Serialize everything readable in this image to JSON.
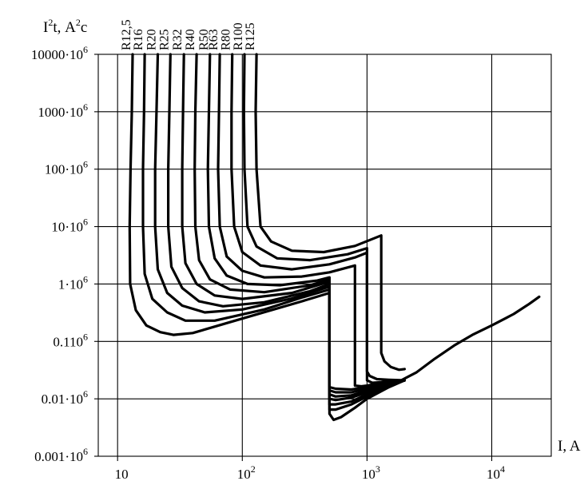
{
  "chart_data": {
    "type": "line",
    "title": "",
    "xlabel": "I, A",
    "ylabel": "I²t, А²с",
    "xscale": "log",
    "yscale": "log",
    "xlim": [
      7,
      30000
    ],
    "ylim": [
      1000.0,
      10000000000.0
    ],
    "grid": true,
    "x_ticks": [
      {
        "value": 10,
        "base": "10",
        "exp": ""
      },
      {
        "value": 100,
        "base": "10",
        "exp": "2"
      },
      {
        "value": 1000,
        "base": "10",
        "exp": "3"
      },
      {
        "value": 10000,
        "base": "10",
        "exp": "4"
      }
    ],
    "y_ticks": [
      {
        "value": 10000000000.0,
        "label": "10000·10",
        "exp": "6"
      },
      {
        "value": 1000000000.0,
        "label": "1000·10",
        "exp": "6"
      },
      {
        "value": 100000000.0,
        "label": "100·10",
        "exp": "6"
      },
      {
        "value": 10000000.0,
        "label": "10·10",
        "exp": "6"
      },
      {
        "value": 1000000.0,
        "label": "1·10",
        "exp": "6"
      },
      {
        "value": 100000.0,
        "label": "0.110",
        "exp": "6"
      },
      {
        "value": 10000.0,
        "label": "0.01·10",
        "exp": "6"
      },
      {
        "value": 1000.0,
        "label": "0.001·10",
        "exp": "6"
      }
    ],
    "series": [
      {
        "name": "R12,5",
        "points": [
          [
            13.2,
            10000000000.0
          ],
          [
            13,
            1000000000.0
          ],
          [
            12.7,
            100000000.0
          ],
          [
            12.5,
            10000000.0
          ],
          [
            12.6,
            1000000.0
          ],
          [
            14,
            350000.0
          ],
          [
            17,
            190000.0
          ],
          [
            22,
            145000.0
          ],
          [
            28,
            130000.0
          ],
          [
            40,
            140000.0
          ],
          [
            100,
            250000.0
          ],
          [
            300,
            500000.0
          ],
          [
            500,
            700000.0
          ],
          [
            500,
            5500.0
          ],
          [
            540,
            4300.0
          ],
          [
            620,
            4800.0
          ],
          [
            800,
            7000.0
          ],
          [
            1000,
            10000.0
          ],
          [
            1500,
            16000.0
          ],
          [
            2000,
            21000.0
          ]
        ]
      },
      {
        "name": "R16",
        "points": [
          [
            16.5,
            10000000000.0
          ],
          [
            16.3,
            1000000000.0
          ],
          [
            16,
            100000000.0
          ],
          [
            16,
            10000000.0
          ],
          [
            16.5,
            1500000.0
          ],
          [
            19,
            550000.0
          ],
          [
            25,
            320000.0
          ],
          [
            35,
            230000.0
          ],
          [
            60,
            230000.0
          ],
          [
            150,
            360000.0
          ],
          [
            300,
            580000.0
          ],
          [
            500,
            800000.0
          ],
          [
            500,
            6500.0
          ],
          [
            560,
            6500.0
          ],
          [
            750,
            8000.0
          ],
          [
            1000,
            11000.0
          ],
          [
            1500,
            17000.0
          ],
          [
            2000,
            21000.0
          ]
        ]
      },
      {
        "name": "R20",
        "points": [
          [
            21,
            10000000000.0
          ],
          [
            20.5,
            1000000000.0
          ],
          [
            20,
            100000000.0
          ],
          [
            20,
            10000000.0
          ],
          [
            21,
            1800000.0
          ],
          [
            25,
            700000.0
          ],
          [
            33,
            420000.0
          ],
          [
            50,
            320000.0
          ],
          [
            100,
            360000.0
          ],
          [
            250,
            560000.0
          ],
          [
            500,
            900000.0
          ],
          [
            500,
            8000.0
          ],
          [
            560,
            8000.0
          ],
          [
            750,
            9000.0
          ],
          [
            1000,
            12000.0
          ],
          [
            1500,
            18000.0
          ],
          [
            2000,
            21000.0
          ]
        ]
      },
      {
        "name": "R25",
        "points": [
          [
            26.5,
            10000000000.0
          ],
          [
            26,
            1000000000.0
          ],
          [
            25.5,
            100000000.0
          ],
          [
            25.5,
            10000000.0
          ],
          [
            27,
            2000000.0
          ],
          [
            33,
            850000.0
          ],
          [
            45,
            500000.0
          ],
          [
            70,
            410000.0
          ],
          [
            150,
            480000.0
          ],
          [
            350,
            750000.0
          ],
          [
            500,
            1000000.0
          ],
          [
            500,
            10000.0
          ],
          [
            560,
            9500.0
          ],
          [
            750,
            10500.0
          ],
          [
            1000,
            13000.0
          ],
          [
            1500,
            18500.0
          ],
          [
            2000,
            21000.0
          ]
        ]
      },
      {
        "name": "R32",
        "points": [
          [
            34,
            10000000000.0
          ],
          [
            33.5,
            1000000000.0
          ],
          [
            33,
            100000000.0
          ],
          [
            33,
            10000000.0
          ],
          [
            35,
            2300000.0
          ],
          [
            43,
            1000000.0
          ],
          [
            60,
            630000.0
          ],
          [
            100,
            550000.0
          ],
          [
            250,
            700000.0
          ],
          [
            500,
            1100000.0
          ],
          [
            500,
            12000.0
          ],
          [
            560,
            11000.0
          ],
          [
            750,
            11500.0
          ],
          [
            1000,
            14000.0
          ],
          [
            1500,
            19000.0
          ],
          [
            2000,
            21000.0
          ]
        ]
      },
      {
        "name": "R40",
        "points": [
          [
            43,
            10000000000.0
          ],
          [
            42,
            1000000000.0
          ],
          [
            41.5,
            100000000.0
          ],
          [
            42,
            10000000.0
          ],
          [
            45,
            2600000.0
          ],
          [
            55,
            1200000.0
          ],
          [
            80,
            800000.0
          ],
          [
            150,
            720000.0
          ],
          [
            350,
            950000.0
          ],
          [
            500,
            1200000.0
          ],
          [
            500,
            14000.0
          ],
          [
            560,
            13000.0
          ],
          [
            750,
            13000.0
          ],
          [
            1000,
            15000.0
          ],
          [
            1500,
            19500.0
          ],
          [
            2000,
            21000.0
          ]
        ]
      },
      {
        "name": "R50",
        "points": [
          [
            55,
            10000000000.0
          ],
          [
            54,
            1000000000.0
          ],
          [
            53,
            100000000.0
          ],
          [
            54,
            10000000.0
          ],
          [
            60,
            2800000.0
          ],
          [
            75,
            1400000.0
          ],
          [
            110,
            1000000.0
          ],
          [
            200,
            950000.0
          ],
          [
            400,
            1150000.0
          ],
          [
            500,
            1300000.0
          ],
          [
            500,
            16000.0
          ],
          [
            560,
            15000.0
          ],
          [
            750,
            14500.0
          ],
          [
            1000,
            16000.0
          ],
          [
            1500,
            20000.0
          ],
          [
            2000,
            21000.0
          ]
        ]
      },
      {
        "name": "R63",
        "points": [
          [
            66,
            10000000000.0
          ],
          [
            65,
            1000000000.0
          ],
          [
            64,
            100000000.0
          ],
          [
            66,
            10000000.0
          ],
          [
            75,
            3000000.0
          ],
          [
            100,
            1700000.0
          ],
          [
            150,
            1300000.0
          ],
          [
            300,
            1350000.0
          ],
          [
            500,
            1600000.0
          ],
          [
            800,
            2100000.0
          ],
          [
            800,
            17000.0
          ],
          [
            900,
            16500.0
          ],
          [
            1000,
            17000.0
          ],
          [
            1500,
            20000.0
          ],
          [
            2000,
            21000.0
          ]
        ]
      },
      {
        "name": "R80",
        "points": [
          [
            83,
            10000000000.0
          ],
          [
            82,
            1000000000.0
          ],
          [
            82,
            100000000.0
          ],
          [
            86,
            10000000.0
          ],
          [
            100,
            3600000.0
          ],
          [
            140,
            2100000.0
          ],
          [
            250,
            1800000.0
          ],
          [
            500,
            2200000.0
          ],
          [
            800,
            2900000.0
          ],
          [
            1000,
            3500000.0
          ],
          [
            1000,
            21000.0
          ],
          [
            1100,
            19000.0
          ],
          [
            1300,
            19500.0
          ],
          [
            1600,
            20500.0
          ],
          [
            2000,
            21000.0
          ]
        ]
      },
      {
        "name": "R100",
        "points": [
          [
            104,
            10000000000.0
          ],
          [
            103,
            1000000000.0
          ],
          [
            104,
            100000000.0
          ],
          [
            110,
            10000000.0
          ],
          [
            130,
            4500000.0
          ],
          [
            190,
            2800000.0
          ],
          [
            350,
            2600000.0
          ],
          [
            700,
            3300000.0
          ],
          [
            1000,
            4200000.0
          ],
          [
            1000,
            30000.0
          ],
          [
            1050,
            25000.0
          ],
          [
            1200,
            22000.0
          ],
          [
            1500,
            21500.0
          ],
          [
            2000,
            21000.0
          ]
        ]
      },
      {
        "name": "R125",
        "points": [
          [
            130,
            10000000000.0
          ],
          [
            128,
            1000000000.0
          ],
          [
            130,
            100000000.0
          ],
          [
            140,
            10000000.0
          ],
          [
            170,
            5500000.0
          ],
          [
            250,
            3800000.0
          ],
          [
            450,
            3600000.0
          ],
          [
            800,
            4600000.0
          ],
          [
            1300,
            7000000.0
          ],
          [
            1300,
            63000.0
          ],
          [
            1380,
            45000.0
          ],
          [
            1550,
            36000.0
          ],
          [
            1800,
            32000.0
          ],
          [
            2000,
            33000.0
          ]
        ]
      },
      {
        "name": "",
        "points": [
          [
            1800,
            20000.0
          ],
          [
            2500,
            29000.0
          ],
          [
            3500,
            50000.0
          ],
          [
            5000,
            85000.0
          ],
          [
            7000,
            130000.0
          ],
          [
            10000,
            190000.0
          ],
          [
            15000,
            300000.0
          ],
          [
            20000,
            450000.0
          ],
          [
            24000,
            600000.0
          ]
        ]
      }
    ]
  }
}
